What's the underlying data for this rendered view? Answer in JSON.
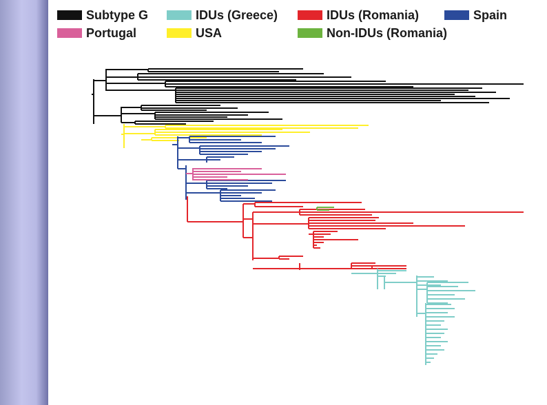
{
  "legend": {
    "items": [
      {
        "label": "Subtype G",
        "color": "#111111"
      },
      {
        "label": "IDUs (Greece)",
        "color": "#7fcdc8"
      },
      {
        "label": "IDUs (Romania)",
        "color": "#e3262b"
      },
      {
        "label": "Spain",
        "color": "#2b4b9b"
      },
      {
        "label": "Portugal",
        "color": "#d9609a"
      },
      {
        "label": "USA",
        "color": "#ffef2a"
      },
      {
        "label": "Non-IDUs (Romania)",
        "color": "#6db33f"
      }
    ]
  }
}
